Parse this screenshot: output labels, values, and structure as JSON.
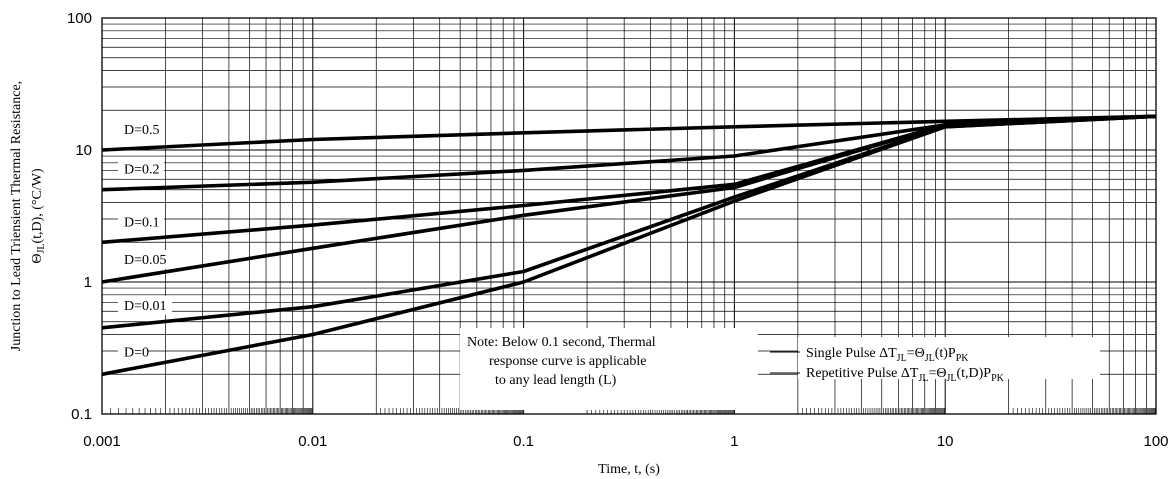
{
  "chart_data": {
    "type": "line",
    "x_scale": "log",
    "y_scale": "log",
    "xlim": [
      0.001,
      100
    ],
    "ylim": [
      0.1,
      100
    ],
    "grid": true,
    "xlabel": "Time, t, (s)",
    "ylabel_line1": "Junction to Lead Triensient Thermal Resistance,",
    "ylabel_line2": {
      "pre": "Θ",
      "sub": "JL",
      "post": "(t,D),  (°C/W)"
    },
    "x_ticks": [
      "0.001",
      "0.01",
      "0.1",
      "1",
      "10",
      "100"
    ],
    "y_ticks": [
      "0.1",
      "1",
      "10",
      "100"
    ],
    "series": [
      {
        "name": "D=0.5",
        "x": [
          0.001,
          0.01,
          0.1,
          1,
          10,
          100
        ],
        "y": [
          10,
          12,
          13.5,
          15,
          16.5,
          18
        ]
      },
      {
        "name": "D=0.2",
        "x": [
          0.001,
          0.01,
          0.1,
          1,
          10,
          100
        ],
        "y": [
          5,
          5.7,
          7,
          9,
          15.5,
          18
        ]
      },
      {
        "name": "D=0.1",
        "x": [
          0.001,
          0.01,
          0.1,
          1,
          10,
          100
        ],
        "y": [
          2,
          2.7,
          3.8,
          5.5,
          15.5,
          18
        ]
      },
      {
        "name": "D=0.05",
        "x": [
          0.001,
          0.01,
          0.1,
          1,
          10,
          100
        ],
        "y": [
          1,
          1.8,
          3.2,
          5.2,
          15.5,
          18
        ]
      },
      {
        "name": "D=0.01",
        "x": [
          0.001,
          0.01,
          0.1,
          1,
          10,
          100
        ],
        "y": [
          0.45,
          0.65,
          1.2,
          4.4,
          15,
          18
        ]
      },
      {
        "name": "D=0",
        "x": [
          0.001,
          0.01,
          0.1,
          1,
          10,
          100
        ],
        "y": [
          0.2,
          0.4,
          1.0,
          4.1,
          15,
          18
        ]
      }
    ],
    "note_lines": [
      "Note: Below 0.1 second, Thermal",
      "response curve is applicable",
      "to any lead length (L)"
    ],
    "legend": {
      "single": {
        "pre": "Single Pulse ΔT",
        "sub1": "JL",
        "mid": "=Θ",
        "sub2": "JL",
        "post": "(t)P",
        "sub3": "PK"
      },
      "repetitive": {
        "pre": "Repetitive Pulse ΔT",
        "sub1": "JL",
        "mid": "=Θ",
        "sub2": "JL",
        "post": "(t,D)P",
        "sub3": "PK"
      }
    }
  }
}
